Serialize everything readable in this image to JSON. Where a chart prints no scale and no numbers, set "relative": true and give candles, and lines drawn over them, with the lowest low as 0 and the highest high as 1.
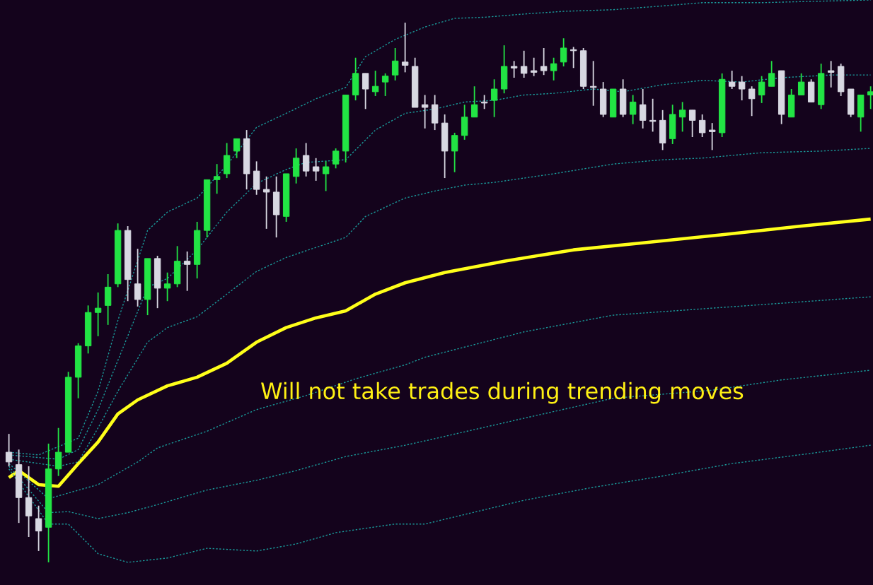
{
  "chart_data": {
    "type": "candlestick",
    "relative": true,
    "categories": [
      null,
      null,
      null,
      null,
      null,
      null,
      null,
      null,
      null,
      null,
      null,
      null,
      null,
      null,
      null,
      null,
      null,
      null,
      null,
      null,
      null,
      null,
      null,
      null,
      null,
      null,
      null,
      null,
      null,
      null,
      null,
      null,
      null,
      null,
      null,
      null,
      null,
      null,
      null,
      null,
      null,
      null,
      null,
      null,
      null,
      null,
      null,
      null,
      null,
      null,
      null,
      null,
      null,
      null,
      null,
      null,
      null,
      null,
      null,
      null,
      null,
      null,
      null,
      null,
      null,
      null,
      null,
      null,
      null,
      null,
      null,
      null,
      null,
      null,
      null,
      null,
      null,
      null,
      null,
      null,
      null,
      null,
      null,
      null,
      null,
      null,
      null,
      null
    ],
    "ohlc": [
      [
        0.204,
        0.238,
        0.178,
        0.186
      ],
      [
        0.181,
        0.209,
        0.073,
        0.12
      ],
      [
        0.12,
        0.178,
        0.047,
        0.086
      ],
      [
        0.081,
        0.105,
        0.021,
        0.058
      ],
      [
        0.065,
        0.22,
        0,
        0.173
      ],
      [
        0.173,
        0.249,
        0.16,
        0.204
      ],
      [
        0.204,
        0.353,
        0.204,
        0.343
      ],
      [
        0.343,
        0.406,
        0.304,
        0.401
      ],
      [
        0.401,
        0.476,
        0.387,
        0.463
      ],
      [
        0.463,
        0.5,
        0.419,
        0.471
      ],
      [
        0.476,
        0.534,
        0.44,
        0.51
      ],
      [
        0.516,
        0.628,
        0.51,
        0.615
      ],
      [
        0.615,
        0.623,
        0.484,
        0.524
      ],
      [
        0.516,
        0.581,
        0.474,
        0.487
      ],
      [
        0.487,
        0.563,
        0.458,
        0.563
      ],
      [
        0.563,
        0.568,
        0.471,
        0.508
      ],
      [
        0.508,
        0.537,
        0.484,
        0.516
      ],
      [
        0.516,
        0.586,
        0.51,
        0.558
      ],
      [
        0.558,
        0.576,
        0.503,
        0.552
      ],
      [
        0.552,
        0.631,
        0.526,
        0.615
      ],
      [
        0.615,
        0.709,
        0.602,
        0.709
      ],
      [
        0.709,
        0.738,
        0.683,
        0.715
      ],
      [
        0.72,
        0.777,
        0.712,
        0.754
      ],
      [
        0.762,
        0.785,
        0.749,
        0.785
      ],
      [
        0.785,
        0.801,
        0.691,
        0.72
      ],
      [
        0.725,
        0.743,
        0.681,
        0.691
      ],
      [
        0.691,
        0.715,
        0.618,
        0.686
      ],
      [
        0.686,
        0.715,
        0.602,
        0.644
      ],
      [
        0.641,
        0.72,
        0.631,
        0.72
      ],
      [
        0.715,
        0.767,
        0.702,
        0.749
      ],
      [
        0.754,
        0.777,
        0.715,
        0.725
      ],
      [
        0.733,
        0.749,
        0.707,
        0.725
      ],
      [
        0.72,
        0.743,
        0.688,
        0.733
      ],
      [
        0.738,
        0.767,
        0.73,
        0.762
      ],
      [
        0.762,
        0.866,
        0.741,
        0.866
      ],
      [
        0.866,
        0.935,
        0.856,
        0.906
      ],
      [
        0.906,
        0.906,
        0.84,
        0.877
      ],
      [
        0.872,
        0.911,
        0.864,
        0.882
      ],
      [
        0.89,
        0.906,
        0.864,
        0.901
      ],
      [
        0.903,
        0.953,
        0.893,
        0.929
      ],
      [
        0.927,
        1,
        0.908,
        0.921
      ],
      [
        0.919,
        0.935,
        0.843,
        0.843
      ],
      [
        0.848,
        0.866,
        0.804,
        0.843
      ],
      [
        0.848,
        0.866,
        0.801,
        0.814
      ],
      [
        0.814,
        0.83,
        0.712,
        0.762
      ],
      [
        0.762,
        0.796,
        0.723,
        0.791
      ],
      [
        0.791,
        0.848,
        0.783,
        0.825
      ],
      [
        0.825,
        0.882,
        0.825,
        0.848
      ],
      [
        0.853,
        0.866,
        0.84,
        0.851
      ],
      [
        0.856,
        0.895,
        0.825,
        0.877
      ],
      [
        0.877,
        0.958,
        0.869,
        0.919
      ],
      [
        0.919,
        0.929,
        0.898,
        0.916
      ],
      [
        0.919,
        0.948,
        0.898,
        0.906
      ],
      [
        0.911,
        0.935,
        0.901,
        0.908
      ],
      [
        0.919,
        0.953,
        0.903,
        0.911
      ],
      [
        0.911,
        0.935,
        0.893,
        0.924
      ],
      [
        0.927,
        0.971,
        0.919,
        0.953
      ],
      [
        0.95,
        0.955,
        0.916,
        0.948
      ],
      [
        0.948,
        0.953,
        0.877,
        0.882
      ],
      [
        0.882,
        0.929,
        0.846,
        0.88
      ],
      [
        0.877,
        0.89,
        0.825,
        0.83
      ],
      [
        0.825,
        0.877,
        0.825,
        0.877
      ],
      [
        0.877,
        0.895,
        0.825,
        0.83
      ],
      [
        0.83,
        0.866,
        0.812,
        0.853
      ],
      [
        0.848,
        0.877,
        0.804,
        0.819
      ],
      [
        0.819,
        0.859,
        0.798,
        0.817
      ],
      [
        0.819,
        0.838,
        0.764,
        0.777
      ],
      [
        0.785,
        0.848,
        0.775,
        0.83
      ],
      [
        0.825,
        0.853,
        0.798,
        0.838
      ],
      [
        0.838,
        0.838,
        0.788,
        0.819
      ],
      [
        0.819,
        0.83,
        0.788,
        0.796
      ],
      [
        0.801,
        0.814,
        0.764,
        0.798
      ],
      [
        0.796,
        0.906,
        0.788,
        0.895
      ],
      [
        0.89,
        0.911,
        0.877,
        0.882
      ],
      [
        0.89,
        0.901,
        0.856,
        0.877
      ],
      [
        0.877,
        0.882,
        0.827,
        0.859
      ],
      [
        0.866,
        0.901,
        0.851,
        0.89
      ],
      [
        0.882,
        0.929,
        0.882,
        0.906
      ],
      [
        0.911,
        0.911,
        0.812,
        0.83
      ],
      [
        0.825,
        0.877,
        0.825,
        0.866
      ],
      [
        0.866,
        0.906,
        0.866,
        0.89
      ],
      [
        0.89,
        0.895,
        0.853,
        0.853
      ],
      [
        0.848,
        0.924,
        0.84,
        0.906
      ],
      [
        0.911,
        0.929,
        0.88,
        0.908
      ],
      [
        0.919,
        0.924,
        0.864,
        0.872
      ],
      [
        0.877,
        0.877,
        0.825,
        0.83
      ],
      [
        0.825,
        0.866,
        0.798,
        0.866
      ],
      [
        0.866,
        0.882,
        0.84,
        0.872
      ]
    ],
    "colors": [
      "#d8d8e2",
      "#d8d8e2",
      "#d8d8e2",
      "#d8d8e2",
      "#22e444",
      "#22e444",
      "#22e444",
      "#22e444",
      "#22e444",
      "#22e444",
      "#22e444",
      "#22e444",
      "#d8d8e2",
      "#d8d8e2",
      "#22e444",
      "#d8d8e2",
      "#22e444",
      "#22e444",
      "#d8d8e2",
      "#22e444",
      "#22e444",
      "#22e444",
      "#22e444",
      "#22e444",
      "#d8d8e2",
      "#d8d8e2",
      "#d8d8e2",
      "#d8d8e2",
      "#22e444",
      "#22e444",
      "#d8d8e2",
      "#d8d8e2",
      "#22e444",
      "#22e444",
      "#22e444",
      "#22e444",
      "#d8d8e2",
      "#22e444",
      "#22e444",
      "#22e444",
      "#d8d8e2",
      "#d8d8e2",
      "#d8d8e2",
      "#d8d8e2",
      "#d8d8e2",
      "#22e444",
      "#22e444",
      "#22e444",
      "#d8d8e2",
      "#22e444",
      "#22e444",
      "#d8d8e2",
      "#d8d8e2",
      "#d8d8e2",
      "#d8d8e2",
      "#22e444",
      "#22e444",
      "#d8d8e2",
      "#d8d8e2",
      "#d8d8e2",
      "#d8d8e2",
      "#22e444",
      "#d8d8e2",
      "#22e444",
      "#d8d8e2",
      "#d8d8e2",
      "#d8d8e2",
      "#22e444",
      "#22e444",
      "#d8d8e2",
      "#d8d8e2",
      "#d8d8e2",
      "#22e444",
      "#d8d8e2",
      "#d8d8e2",
      "#d8d8e2",
      "#22e444",
      "#22e444",
      "#d8d8e2",
      "#22e444",
      "#22e444",
      "#d8d8e2",
      "#22e444",
      "#d8d8e2",
      "#d8d8e2",
      "#d8d8e2",
      "#22e444",
      "#22e444"
    ],
    "series": [
      {
        "type": "line",
        "color": "#ffff1a",
        "line_style": "solid",
        "values": [
          0.157,
          0.17,
          null,
          0.144,
          null,
          0.141,
          null,
          0.183,
          null,
          0.223,
          null,
          0.275,
          null,
          0.301,
          null,
          null,
          0.327,
          null,
          null,
          0.343,
          null,
          null,
          0.369,
          null,
          null,
          0.408,
          null,
          null,
          0.435,
          null,
          null,
          0.453,
          null,
          null,
          0.466,
          null,
          null,
          0.497,
          null,
          null,
          0.518,
          null,
          null,
          null,
          0.537,
          null,
          null,
          null,
          null,
          null,
          0.558,
          null,
          null,
          null,
          null,
          null,
          null,
          0.579,
          null,
          null,
          null,
          null,
          null,
          null,
          0.592,
          null,
          null,
          null,
          null,
          null,
          null,
          null,
          0.607,
          null,
          null,
          null,
          null,
          null,
          null,
          null,
          0.623,
          null,
          null,
          null,
          null,
          null,
          null,
          0.636
        ]
      },
      {
        "type": "line",
        "color": "#1a9a9a",
        "line_style": "dotted",
        "values": [
          0.204,
          null,
          null,
          0.199,
          null,
          null,
          null,
          0.23,
          null,
          0.317,
          null,
          0.448,
          null,
          null,
          0.615,
          null,
          0.649,
          null,
          null,
          0.675,
          null,
          null,
          0.736,
          null,
          null,
          0.806,
          null,
          null,
          0.832,
          null,
          null,
          0.859,
          null,
          null,
          0.88,
          null,
          0.937,
          null,
          null,
          0.969,
          null,
          null,
          0.992,
          null,
          null,
          1.008,
          null,
          null,
          1.01,
          null,
          null,
          null,
          1.016,
          null,
          null,
          null,
          1.021,
          null,
          null,
          null,
          null,
          1.024,
          null,
          null,
          null,
          null,
          1.031,
          null,
          null,
          null,
          1.037,
          null,
          null,
          null,
          null,
          null,
          1.037,
          null,
          null,
          null,
          1.039,
          null,
          null,
          null,
          null,
          null,
          null,
          1.042
        ]
      },
      {
        "type": "line",
        "color": "#1a9a9a",
        "line_style": "dotted",
        "values": [
          0.199,
          null,
          null,
          null,
          null,
          0.191,
          null,
          0.209,
          null,
          0.283,
          null,
          0.374,
          null,
          null,
          0.51,
          null,
          0.526,
          null,
          null,
          0.579,
          null,
          null,
          0.649,
          null,
          null,
          0.702,
          null,
          null,
          0.728,
          null,
          0.741,
          null,
          null,
          null,
          0.746,
          null,
          null,
          0.801,
          null,
          null,
          0.832,
          null,
          null,
          0.84,
          null,
          null,
          0.853,
          null,
          null,
          0.856,
          null,
          null,
          0.866,
          null,
          null,
          0.869,
          null,
          null,
          null,
          0.877,
          null,
          null,
          0.872,
          null,
          null,
          null,
          0.885,
          null,
          null,
          null,
          0.893,
          null,
          null,
          null,
          0.89,
          null,
          null,
          null,
          0.898,
          null,
          null,
          null,
          null,
          0.903,
          null,
          null,
          null,
          0.903
        ]
      },
      {
        "type": "line",
        "color": "#1a9a9a",
        "line_style": "dotted",
        "values": [
          0.191,
          null,
          null,
          null,
          null,
          0.178,
          null,
          0.186,
          null,
          0.249,
          null,
          0.317,
          null,
          null,
          0.408,
          null,
          0.435,
          null,
          null,
          0.455,
          null,
          null,
          null,
          null,
          null,
          0.539,
          null,
          null,
          0.565,
          null,
          null,
          null,
          null,
          null,
          0.602,
          null,
          0.641,
          null,
          null,
          null,
          0.675,
          null,
          null,
          0.688,
          null,
          null,
          0.699,
          null,
          null,
          0.704,
          null,
          null,
          0.712,
          null,
          null,
          0.72,
          0.723,
          null,
          null,
          null,
          null,
          0.738,
          null,
          null,
          null,
          null,
          0.746,
          null,
          null,
          null,
          0.749,
          null,
          null,
          null,
          null,
          null,
          0.759,
          null,
          null,
          null,
          null,
          null,
          0.762,
          null,
          null,
          null,
          null,
          0.767
        ]
      },
      {
        "type": "line",
        "color": "#1a9a9a",
        "line_style": "dotted",
        "values": [
          0.183,
          null,
          null,
          null,
          0.118,
          null,
          null,
          null,
          null,
          0.144,
          null,
          null,
          null,
          0.186,
          null,
          0.212,
          null,
          null,
          null,
          null,
          0.243,
          null,
          null,
          null,
          null,
          0.283,
          null,
          null,
          null,
          null,
          0.309,
          null,
          null,
          null,
          null,
          0.34,
          null,
          null,
          null,
          null,
          0.366,
          null,
          0.38,
          null,
          null,
          null,
          null,
          null,
          null,
          null,
          null,
          null,
          0.427,
          null,
          null,
          null,
          null,
          null,
          null,
          null,
          null,
          0.458,
          null,
          null,
          null,
          null,
          null,
          null,
          null,
          null,
          null,
          0.471,
          null,
          null,
          null,
          null,
          null,
          null,
          null,
          null,
          null,
          0.484,
          null,
          null,
          null,
          null,
          null,
          0.492
        ]
      },
      {
        "type": "line",
        "color": "#1a9a9a",
        "line_style": "dotted",
        "values": [
          0.178,
          null,
          null,
          null,
          0.092,
          null,
          0.094,
          null,
          null,
          0.081,
          null,
          null,
          0.092,
          null,
          null,
          0.107,
          null,
          null,
          null,
          null,
          0.134,
          null,
          null,
          null,
          null,
          0.152,
          null,
          null,
          null,
          0.17,
          null,
          null,
          null,
          null,
          0.196,
          null,
          null,
          null,
          null,
          null,
          0.217,
          null,
          0.225,
          null,
          null,
          null,
          null,
          null,
          null,
          null,
          null,
          null,
          0.267,
          null,
          null,
          null,
          null,
          null,
          null,
          null,
          null,
          0.304,
          null,
          null,
          null,
          null,
          null,
          null,
          null,
          null,
          null,
          0.319,
          null,
          null,
          null,
          null,
          null,
          null,
          0.338,
          null,
          null,
          null,
          null,
          null,
          null,
          null,
          null,
          0.356
        ]
      },
      {
        "type": "line",
        "color": "#1a9a9a",
        "line_style": "dotted",
        "values": [
          0.173,
          null,
          null,
          null,
          0.071,
          null,
          0.071,
          null,
          null,
          0.016,
          null,
          null,
          0,
          null,
          null,
          null,
          0.008,
          null,
          null,
          null,
          0.026,
          null,
          null,
          null,
          null,
          0.021,
          null,
          null,
          null,
          0.034,
          null,
          null,
          null,
          0.055,
          null,
          null,
          null,
          null,
          null,
          0.071,
          null,
          null,
          0.071,
          null,
          null,
          null,
          null,
          null,
          null,
          null,
          null,
          null,
          0.115,
          null,
          null,
          null,
          null,
          null,
          null,
          0.139,
          null,
          null,
          null,
          null,
          null,
          null,
          0.16,
          null,
          null,
          null,
          null,
          null,
          null,
          0.183,
          null,
          null,
          null,
          null,
          null,
          null,
          null,
          0.202,
          null,
          null,
          null,
          null,
          null,
          0.217
        ]
      }
    ],
    "annotations": [
      "Will not take trades during trending moves"
    ]
  }
}
